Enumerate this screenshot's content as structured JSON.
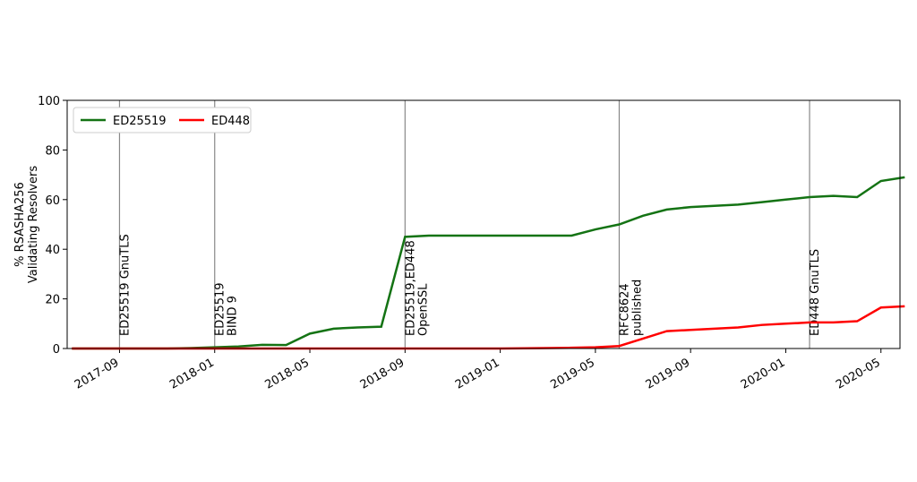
{
  "chart_data": {
    "type": "line",
    "ylabel": [
      "% RSASHA256",
      "Validating Resolvers"
    ],
    "x": [
      "2017-07",
      "2017-08",
      "2017-09",
      "2017-10",
      "2017-11",
      "2017-12",
      "2018-01",
      "2018-02",
      "2018-03",
      "2018-04",
      "2018-05",
      "2018-06",
      "2018-07",
      "2018-08",
      "2018-09",
      "2018-10",
      "2018-11",
      "2018-12",
      "2019-01",
      "2019-02",
      "2019-03",
      "2019-04",
      "2019-05",
      "2019-06",
      "2019-07",
      "2019-08",
      "2019-09",
      "2019-10",
      "2019-11",
      "2019-12",
      "2020-01",
      "2020-02",
      "2020-03",
      "2020-04",
      "2020-05",
      "2020-06"
    ],
    "series": [
      {
        "name": "ED25519",
        "color": "#147314",
        "values": [
          0,
          0,
          0,
          0,
          0,
          0.2,
          0.5,
          0.8,
          1.5,
          1.4,
          6,
          8,
          8.5,
          8.8,
          45,
          45.5,
          45.5,
          45.5,
          45.5,
          45.5,
          45.5,
          45.5,
          48,
          50,
          53.5,
          56,
          57,
          57.5,
          58,
          59,
          60,
          61,
          61.5,
          61,
          67.5,
          69
        ]
      },
      {
        "name": "ED448",
        "color": "#ff0000",
        "values": [
          0,
          0,
          0,
          0,
          0,
          0,
          0,
          0,
          0,
          0,
          0,
          0,
          0,
          0,
          0,
          0,
          0,
          0,
          0,
          0.1,
          0.2,
          0.3,
          0.5,
          1,
          4,
          7,
          7.5,
          8,
          8.5,
          9.5,
          10,
          10.5,
          10.5,
          11,
          16.5,
          17
        ]
      }
    ],
    "xlim": [
      "2017-07",
      "2020-06"
    ],
    "xticks": [
      "2017-09",
      "2018-01",
      "2018-05",
      "2018-09",
      "2019-01",
      "2019-05",
      "2019-09",
      "2020-01",
      "2020-05"
    ],
    "ylim": [
      0,
      100
    ],
    "yticks": [
      0,
      20,
      40,
      60,
      80,
      100
    ],
    "annotations": [
      {
        "x": "2017-09",
        "lines": [
          "ED25519 GnuTLS"
        ]
      },
      {
        "x": "2018-01",
        "lines": [
          "ED25519",
          "BIND 9"
        ]
      },
      {
        "x": "2018-09",
        "lines": [
          "ED25519,ED448",
          "OpenSSL"
        ]
      },
      {
        "x": "2019-06",
        "lines": [
          "RFC8624",
          "published"
        ]
      },
      {
        "x": "2020-02",
        "lines": [
          "ED448 GnuTLS"
        ]
      }
    ],
    "legend": "upper left"
  }
}
